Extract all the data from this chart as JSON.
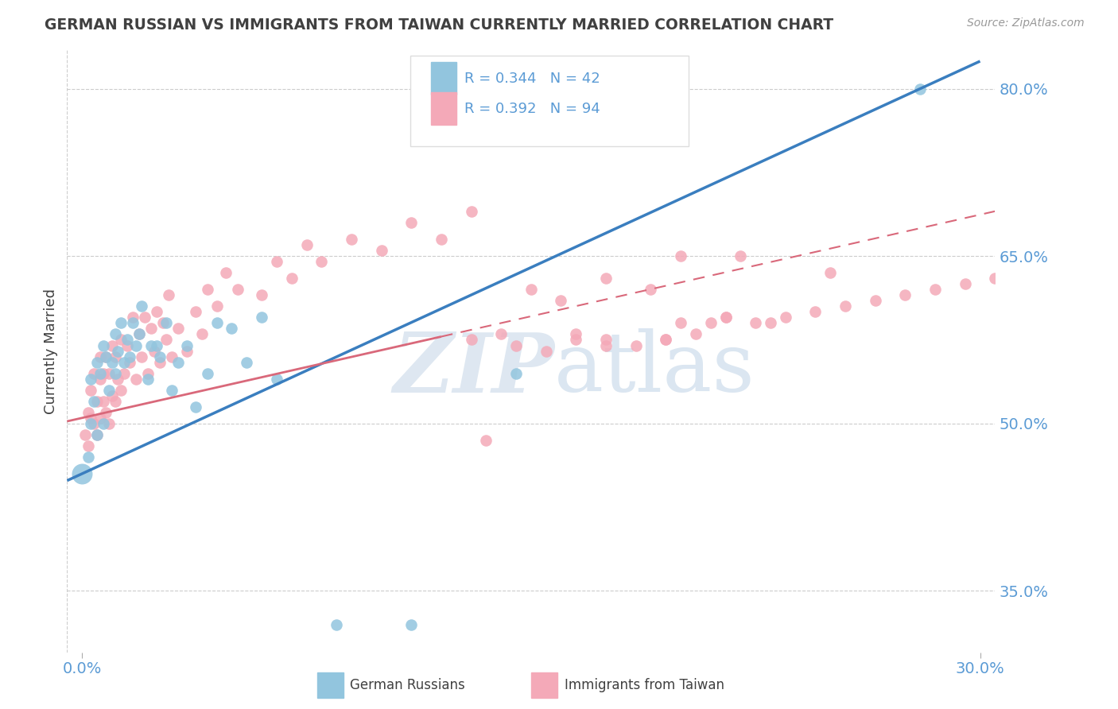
{
  "title": "GERMAN RUSSIAN VS IMMIGRANTS FROM TAIWAN CURRENTLY MARRIED CORRELATION CHART",
  "source_text": "Source: ZipAtlas.com",
  "ylabel": "Currently Married",
  "ytick_vals": [
    0.35,
    0.5,
    0.65,
    0.8
  ],
  "ytick_labels": [
    "35.0%",
    "50.0%",
    "65.0%",
    "80.0%"
  ],
  "xtick_vals": [
    0.0,
    0.3
  ],
  "xtick_labels": [
    "0.0%",
    "30.0%"
  ],
  "legend_line1": "R = 0.344   N = 42",
  "legend_line2": "R = 0.392   N = 94",
  "blue_color": "#92c5de",
  "pink_color": "#f4a9b8",
  "trend_blue_color": "#3a7ebf",
  "trend_pink_color": "#d9687a",
  "label1": "German Russians",
  "label2": "Immigrants from Taiwan",
  "axis_label_color": "#5b9bd5",
  "title_color": "#404040",
  "watermark_zip_color": "#c8d8e8",
  "watermark_atlas_color": "#b0c8e0",
  "blue_x": [
    0.002,
    0.003,
    0.003,
    0.004,
    0.005,
    0.005,
    0.006,
    0.007,
    0.007,
    0.008,
    0.009,
    0.01,
    0.011,
    0.011,
    0.012,
    0.013,
    0.014,
    0.015,
    0.016,
    0.017,
    0.018,
    0.019,
    0.02,
    0.022,
    0.023,
    0.025,
    0.026,
    0.028,
    0.03,
    0.032,
    0.035,
    0.038,
    0.042,
    0.045,
    0.05,
    0.055,
    0.06,
    0.065,
    0.085,
    0.11,
    0.28,
    0.145
  ],
  "blue_y": [
    0.47,
    0.5,
    0.54,
    0.52,
    0.49,
    0.555,
    0.545,
    0.57,
    0.5,
    0.56,
    0.53,
    0.555,
    0.58,
    0.545,
    0.565,
    0.59,
    0.555,
    0.575,
    0.56,
    0.59,
    0.57,
    0.58,
    0.605,
    0.54,
    0.57,
    0.57,
    0.56,
    0.59,
    0.53,
    0.555,
    0.57,
    0.515,
    0.545,
    0.59,
    0.585,
    0.555,
    0.595,
    0.54,
    0.32,
    0.32,
    0.8,
    0.545
  ],
  "blue_large_x": [
    0.0
  ],
  "blue_large_y": [
    0.455
  ],
  "pink_x": [
    0.001,
    0.002,
    0.002,
    0.003,
    0.003,
    0.004,
    0.004,
    0.005,
    0.005,
    0.006,
    0.006,
    0.006,
    0.007,
    0.007,
    0.008,
    0.008,
    0.009,
    0.009,
    0.01,
    0.01,
    0.011,
    0.011,
    0.012,
    0.013,
    0.013,
    0.014,
    0.015,
    0.016,
    0.017,
    0.018,
    0.019,
    0.02,
    0.021,
    0.022,
    0.023,
    0.024,
    0.025,
    0.026,
    0.027,
    0.028,
    0.029,
    0.03,
    0.032,
    0.035,
    0.038,
    0.04,
    0.042,
    0.045,
    0.048,
    0.052,
    0.06,
    0.065,
    0.07,
    0.075,
    0.08,
    0.09,
    0.1,
    0.11,
    0.12,
    0.13,
    0.135,
    0.15,
    0.16,
    0.175,
    0.19,
    0.2,
    0.22,
    0.25,
    0.2,
    0.215,
    0.23,
    0.21,
    0.165,
    0.175,
    0.195,
    0.145,
    0.155,
    0.165,
    0.175,
    0.185,
    0.195,
    0.205,
    0.215,
    0.225,
    0.235,
    0.245,
    0.255,
    0.265,
    0.275,
    0.285,
    0.295,
    0.305,
    0.13,
    0.14
  ],
  "pink_y": [
    0.49,
    0.51,
    0.48,
    0.53,
    0.505,
    0.5,
    0.545,
    0.52,
    0.49,
    0.54,
    0.56,
    0.505,
    0.52,
    0.545,
    0.51,
    0.56,
    0.5,
    0.545,
    0.525,
    0.57,
    0.52,
    0.56,
    0.54,
    0.575,
    0.53,
    0.545,
    0.57,
    0.555,
    0.595,
    0.54,
    0.58,
    0.56,
    0.595,
    0.545,
    0.585,
    0.565,
    0.6,
    0.555,
    0.59,
    0.575,
    0.615,
    0.56,
    0.585,
    0.565,
    0.6,
    0.58,
    0.62,
    0.605,
    0.635,
    0.62,
    0.615,
    0.645,
    0.63,
    0.66,
    0.645,
    0.665,
    0.655,
    0.68,
    0.665,
    0.69,
    0.485,
    0.62,
    0.61,
    0.63,
    0.62,
    0.65,
    0.65,
    0.635,
    0.59,
    0.595,
    0.59,
    0.59,
    0.575,
    0.57,
    0.575,
    0.57,
    0.565,
    0.58,
    0.575,
    0.57,
    0.575,
    0.58,
    0.595,
    0.59,
    0.595,
    0.6,
    0.605,
    0.61,
    0.615,
    0.62,
    0.625,
    0.63,
    0.575,
    0.58
  ],
  "xlim": [
    -0.005,
    0.305
  ],
  "ylim": [
    0.295,
    0.835
  ]
}
